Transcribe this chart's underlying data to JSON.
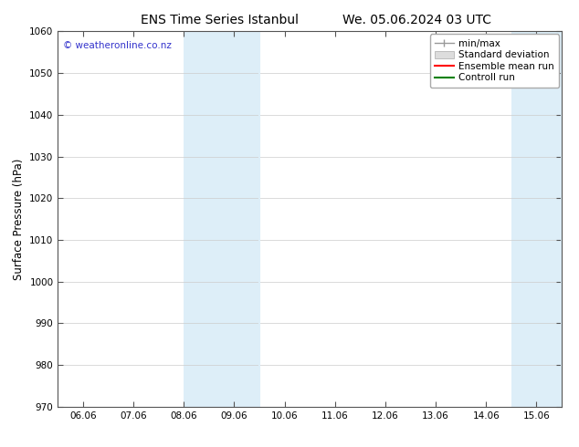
{
  "title_left": "ENS Time Series Istanbul",
  "title_right": "We. 05.06.2024 03 UTC",
  "ylabel": "Surface Pressure (hPa)",
  "watermark": "© weatheronline.co.nz",
  "ylim": [
    970,
    1060
  ],
  "yticks": [
    970,
    980,
    990,
    1000,
    1010,
    1020,
    1030,
    1040,
    1050,
    1060
  ],
  "x_labels": [
    "06.06",
    "07.06",
    "08.06",
    "09.06",
    "10.06",
    "11.06",
    "12.06",
    "13.06",
    "14.06",
    "15.06"
  ],
  "x_values": [
    0,
    1,
    2,
    3,
    4,
    5,
    6,
    7,
    8,
    9
  ],
  "blue_band_ranges": [
    [
      2.0,
      3.5
    ],
    [
      8.5,
      9.5
    ]
  ],
  "band_thin_lines": [
    3.5,
    9.5
  ],
  "background_color": "#ffffff",
  "plot_bg_color": "#ffffff",
  "grid_color": "#cccccc",
  "title_fontsize": 10,
  "tick_label_fontsize": 7.5,
  "ylabel_fontsize": 8.5,
  "watermark_color": "#3333cc",
  "watermark_fontsize": 7.5,
  "spine_color": "#555555",
  "legend_fontsize": 7.5,
  "band_color": "#ddeef8"
}
